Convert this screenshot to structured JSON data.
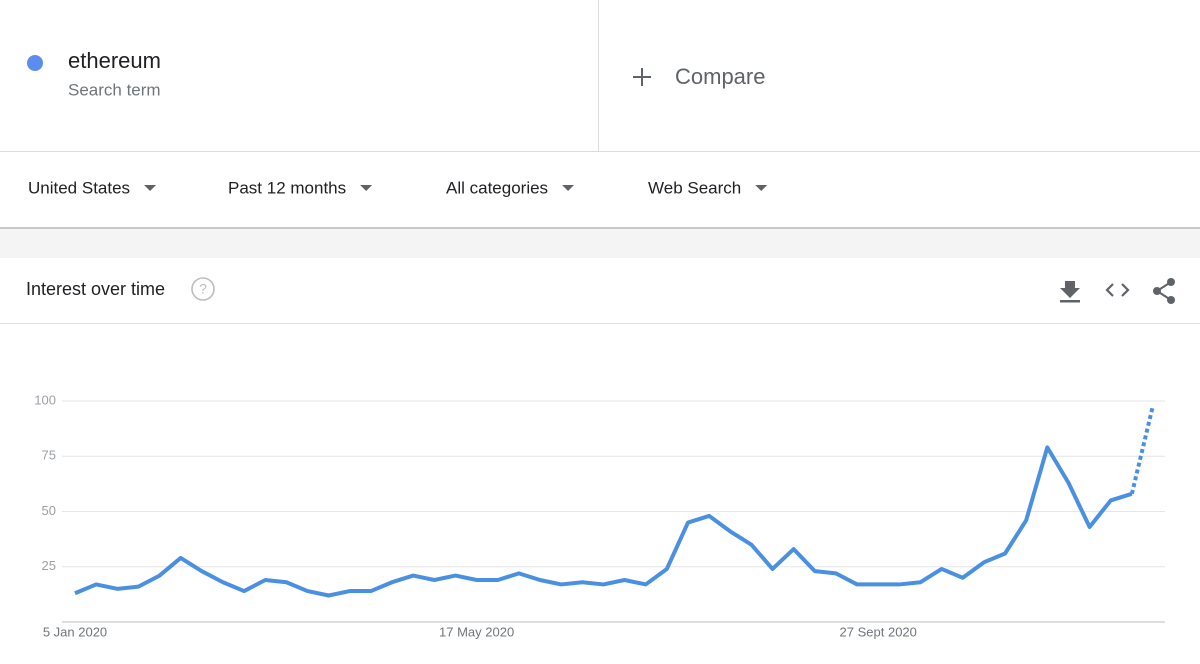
{
  "search_term": {
    "label": "ethereum",
    "sublabel": "Search term"
  },
  "compare": "Compare",
  "filters": [
    "United States",
    "Past 12 months",
    "All categories",
    "Web Search"
  ],
  "card_title": "Interest over time",
  "chart_data": {
    "type": "line",
    "categories": [
      "5 Jan 2020",
      null,
      null,
      null,
      null,
      null,
      null,
      null,
      null,
      null,
      null,
      null,
      null,
      null,
      null,
      null,
      null,
      null,
      null,
      "17 May 2020",
      null,
      null,
      null,
      null,
      null,
      null,
      null,
      null,
      null,
      null,
      null,
      null,
      null,
      null,
      null,
      null,
      null,
      null,
      "27 Sept 2020",
      null,
      null,
      null,
      null,
      null,
      null,
      null,
      null,
      null,
      null,
      null,
      null,
      null
    ],
    "series": [
      {
        "name": "ethereum",
        "color": "#4a90e2",
        "values": [
          13,
          17,
          15,
          16,
          21,
          29,
          23,
          18,
          14,
          19,
          18,
          14,
          12,
          14,
          14,
          18,
          21,
          19,
          21,
          19,
          19,
          22,
          19,
          17,
          18,
          17,
          19,
          17,
          24,
          45,
          48,
          41,
          35,
          24,
          33,
          23,
          22,
          17,
          17,
          17,
          18,
          24,
          20,
          27,
          31,
          46,
          79,
          63,
          43,
          55,
          58,
          98
        ]
      }
    ],
    "partial_last_point": true,
    "ylim": [
      0,
      100
    ],
    "yticks": [
      25,
      50,
      75,
      100
    ],
    "grid": true
  }
}
